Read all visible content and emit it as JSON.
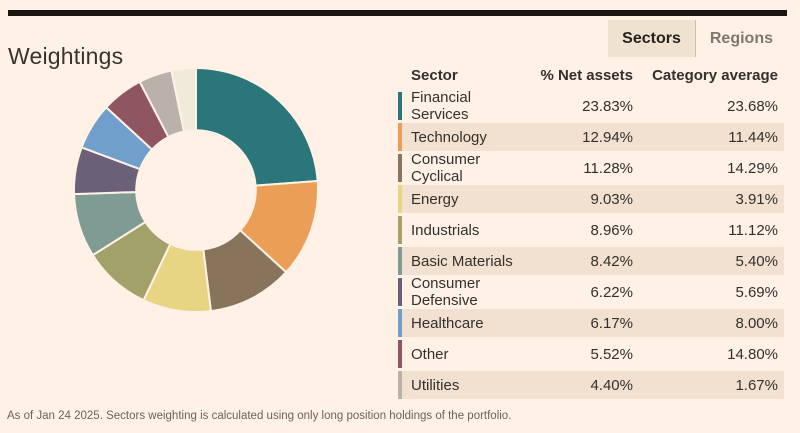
{
  "page": {
    "title": "Weightings"
  },
  "tabs": {
    "sectors_label": "Sectors",
    "regions_label": "Regions",
    "active": "Sectors"
  },
  "table": {
    "headers": [
      "Sector",
      "% Net assets",
      "Category average"
    ],
    "rows": [
      {
        "sector": "Financial Services",
        "net": "23.83%",
        "cat": "23.68%",
        "color": "#2B767A"
      },
      {
        "sector": "Technology",
        "net": "12.94%",
        "cat": "11.44%",
        "color": "#EB9E55"
      },
      {
        "sector": "Consumer Cyclical",
        "net": "11.28%",
        "cat": "14.29%",
        "color": "#87745A"
      },
      {
        "sector": "Energy",
        "net": "9.03%",
        "cat": "3.91%",
        "color": "#E7D583"
      },
      {
        "sector": "Industrials",
        "net": "8.96%",
        "cat": "11.12%",
        "color": "#A1A169"
      },
      {
        "sector": "Basic Materials",
        "net": "8.42%",
        "cat": "5.40%",
        "color": "#7E9B94"
      },
      {
        "sector": "Consumer Defensive",
        "net": "6.22%",
        "cat": "5.69%",
        "color": "#6A6078"
      },
      {
        "sector": "Healthcare",
        "net": "6.17%",
        "cat": "8.00%",
        "color": "#6F9FCA"
      },
      {
        "sector": "Other",
        "net": "5.52%",
        "cat": "14.80%",
        "color": "#8F5560"
      },
      {
        "sector": "Utilities",
        "net": "4.40%",
        "cat": "1.67%",
        "color": "#B9B1AA"
      }
    ]
  },
  "chart_data": {
    "type": "pie",
    "subtype": "donut",
    "title": "Sector weightings (% net assets)",
    "direction": "clockwise",
    "start_angle_deg": 0,
    "categories": [
      "Financial Services",
      "Technology",
      "Consumer Cyclical",
      "Energy",
      "Industrials",
      "Basic Materials",
      "Consumer Defensive",
      "Healthcare",
      "Other",
      "Utilities",
      "Remaining"
    ],
    "values": [
      23.83,
      12.94,
      11.28,
      9.03,
      8.96,
      8.42,
      6.22,
      6.17,
      5.52,
      4.4,
      3.23
    ],
    "colors": [
      "#2B767A",
      "#EB9E55",
      "#87745A",
      "#E7D583",
      "#A1A169",
      "#7E9B94",
      "#6A6078",
      "#6F9FCA",
      "#8F5560",
      "#B9B1AA",
      "#F0EADB"
    ],
    "category_average_series": {
      "name": "Category average",
      "values": [
        23.68,
        11.44,
        14.29,
        3.91,
        11.12,
        5.4,
        5.69,
        8.0,
        14.8,
        1.67
      ]
    },
    "legend_position": "table-right",
    "inner_radius_ratio": 0.49
  },
  "footer": {
    "note": "As of Jan 24 2025. Sectors weighting is calculated using only long position holdings of the portfolio."
  },
  "colors": {
    "background": "#FFF1E5",
    "top_bar": "#191511",
    "row_stripe": "#F2E1D0",
    "active_tab_bg": "#EFE2D1",
    "text_primary": "#33302E",
    "text_muted": "#6A645E"
  }
}
